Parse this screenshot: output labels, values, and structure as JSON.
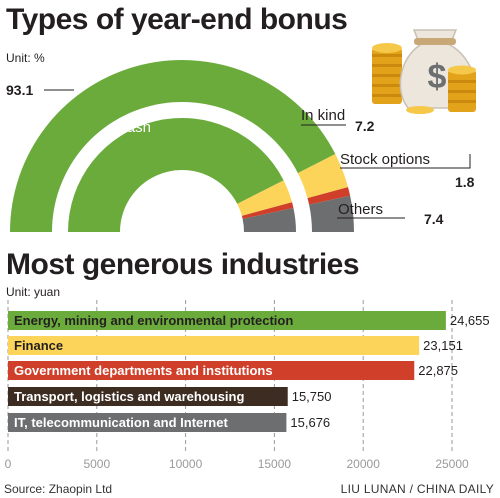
{
  "colors": {
    "cash": "#6bab3c",
    "in_kind": "#fcd45a",
    "stock_options": "#cf3f29",
    "others": "#6d6e70",
    "transport_bar": "#3d2c22",
    "it_bar": "#6d6e70",
    "grid": "#9a9a9a"
  },
  "icons": [
    "money-bag-icon",
    "coin-stack-icon"
  ],
  "chart_data": [
    {
      "type": "pie",
      "title": "Types of year-end bonus",
      "unit": "Unit: %",
      "categories": [
        "Cash",
        "In kind",
        "Stock options",
        "Others"
      ],
      "values": [
        93.1,
        7.2,
        1.8,
        7.4
      ],
      "value_labels": [
        "93.1",
        "7.2",
        "1.8",
        "7.4"
      ]
    },
    {
      "type": "bar",
      "orientation": "horizontal",
      "title": "Most generous industries",
      "unit": "Unit: yuan",
      "categories": [
        "Energy, mining and environmental protection",
        "Finance",
        "Government departments and institutions",
        "Transport, logistics and warehousing",
        "IT, telecommunication and Internet"
      ],
      "values": [
        24655,
        23151,
        22875,
        15750,
        15676
      ],
      "value_labels": [
        "24,655",
        "23,151",
        "22,875",
        "15,750",
        "15,676"
      ],
      "colors": [
        "#6bab3c",
        "#fcd45a",
        "#cf3f29",
        "#3d2c22",
        "#6d6e70"
      ],
      "label_colors": [
        "#231f20",
        "#231f20",
        "#ffffff",
        "#ffffff",
        "#ffffff"
      ],
      "xlim": [
        0,
        27000
      ],
      "xticks": [
        0,
        5000,
        10000,
        15000,
        20000,
        25000
      ],
      "xtick_labels": [
        "0",
        "5000",
        "10000",
        "15000",
        "20000",
        "25000"
      ],
      "grid": true
    }
  ],
  "footer": {
    "source": "Source: Zhaopin Ltd",
    "credit": "LIU LUNAN / CHINA DAILY"
  }
}
